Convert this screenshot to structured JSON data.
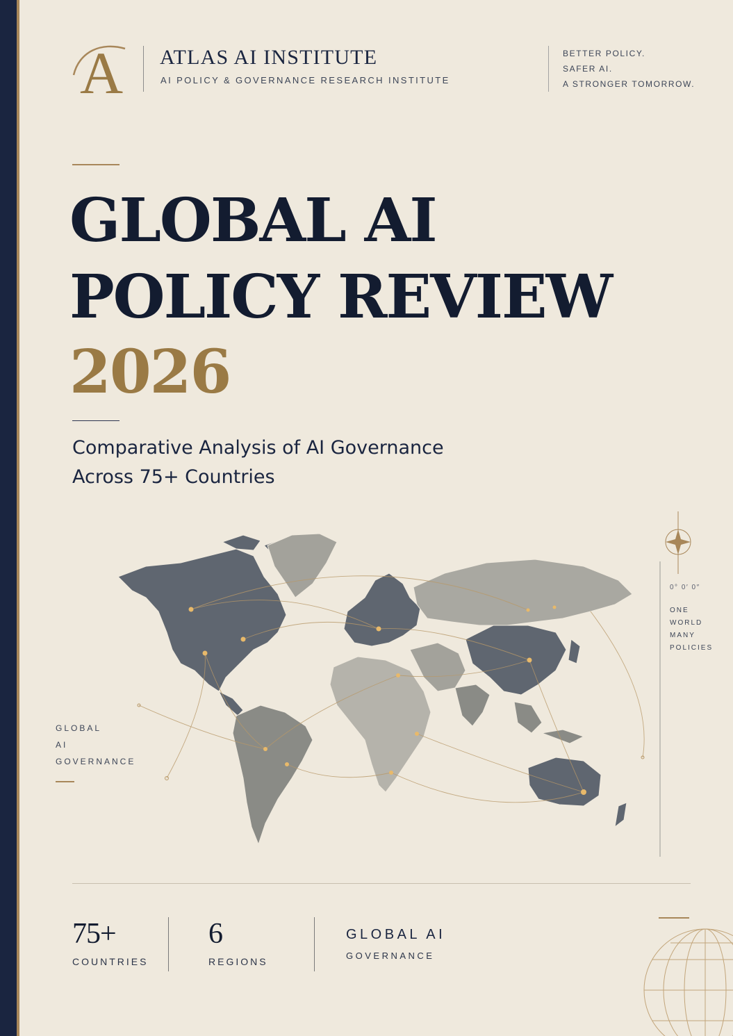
{
  "header": {
    "logo_letter": "A",
    "org_name": "ATLAS AI INSTITUTE",
    "org_subtitle": "AI POLICY & GOVERNANCE RESEARCH INSTITUTE",
    "taglines": [
      "BETTER POLICY.",
      "SAFER AI.",
      "A STRONGER TOMORROW."
    ]
  },
  "title": {
    "line1": "GLOBAL AI",
    "line2": "POLICY REVIEW",
    "year": "2026"
  },
  "subtitle": {
    "line1": "Comparative Analysis of AI Governance",
    "line2": "Across 75+ Countries"
  },
  "side_left": [
    "GLOBAL",
    "AI",
    "GOVERNANCE"
  ],
  "side_right": {
    "coord": "0° 0′ 0″",
    "lines": [
      "ONE",
      "WORLD",
      "MANY",
      "POLICIES"
    ]
  },
  "stats": [
    {
      "value": "75+",
      "label": "COUNTRIES"
    },
    {
      "value": "6",
      "label": "REGIONS"
    }
  ],
  "footer_tag": {
    "title": "GLOBAL AI",
    "subtitle": "GOVERNANCE"
  },
  "icons": {
    "logo": "serif-a-with-arc-icon",
    "compass": "compass-star-icon",
    "globe": "wireframe-globe-icon",
    "map": "world-map-with-network-nodes"
  },
  "colors": {
    "navy": "#1a2540",
    "gold": "#9a7a45",
    "paper": "#efe9dd"
  }
}
